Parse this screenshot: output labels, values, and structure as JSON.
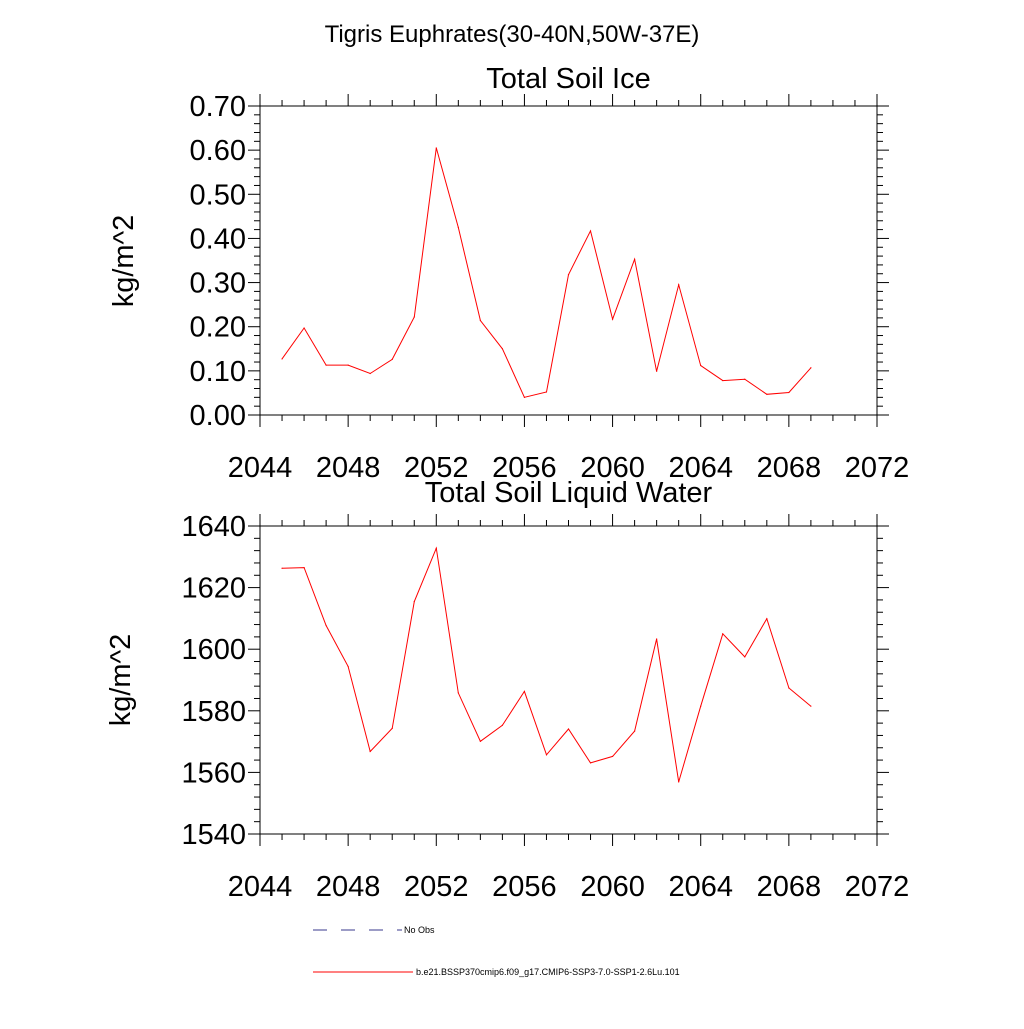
{
  "figure_title": "Tigris Euphrates(30-40N,50W-37E)",
  "legend": {
    "entries": [
      {
        "label": "No Obs",
        "color": "#3a3a8c",
        "dash": true
      },
      {
        "label": "b.e21.BSSP370cmip6.f09_g17.CMIP6-SSP3-7.0-SSP1-2.6Lu.101",
        "color": "#ff0000",
        "dash": false
      }
    ]
  },
  "chart_data": [
    {
      "type": "line",
      "title": "Total Soil Ice",
      "xlabel": "",
      "ylabel": "kg/m^2",
      "xlim": [
        2044,
        2072
      ],
      "ylim": [
        0.0,
        0.7
      ],
      "xticks": [
        "2044",
        "2048",
        "2052",
        "2056",
        "2060",
        "2064",
        "2068",
        "2072"
      ],
      "yticks": [
        "0.00",
        "0.10",
        "0.20",
        "0.30",
        "0.40",
        "0.50",
        "0.60",
        "0.70"
      ],
      "series": [
        {
          "color": "#ff0000",
          "x": [
            2045,
            2046,
            2047,
            2048,
            2049,
            2050,
            2051,
            2052,
            2053,
            2054,
            2055,
            2056,
            2057,
            2058,
            2059,
            2060,
            2061,
            2062,
            2063,
            2064,
            2065,
            2066,
            2067,
            2068,
            2069
          ],
          "values": [
            0.127,
            0.197,
            0.113,
            0.113,
            0.094,
            0.126,
            0.222,
            0.605,
            0.425,
            0.214,
            0.15,
            0.04,
            0.052,
            0.318,
            0.417,
            0.217,
            0.353,
            0.099,
            0.295,
            0.112,
            0.078,
            0.081,
            0.047,
            0.051,
            0.107
          ]
        }
      ]
    },
    {
      "type": "line",
      "title": "Total Soil Liquid Water",
      "xlabel": "",
      "ylabel": "kg/m^2",
      "xlim": [
        2044,
        2072
      ],
      "ylim": [
        1540,
        1640
      ],
      "xticks": [
        "2044",
        "2048",
        "2052",
        "2056",
        "2060",
        "2064",
        "2068",
        "2072"
      ],
      "yticks": [
        "1540",
        "1560",
        "1580",
        "1600",
        "1620",
        "1640"
      ],
      "series": [
        {
          "color": "#ff0000",
          "x": [
            2045,
            2046,
            2047,
            2048,
            2049,
            2050,
            2051,
            2052,
            2053,
            2054,
            2055,
            2056,
            2057,
            2058,
            2059,
            2060,
            2061,
            2062,
            2063,
            2064,
            2065,
            2066,
            2067,
            2068,
            2069
          ],
          "values": [
            1626.3,
            1626.5,
            1607.7,
            1594.4,
            1566.8,
            1574.3,
            1615.5,
            1632.8,
            1585.8,
            1570.1,
            1575.3,
            1586.3,
            1565.7,
            1574.1,
            1563.1,
            1565.2,
            1573.4,
            1603.3,
            1556.9,
            1581.5,
            1605.0,
            1597.5,
            1609.9,
            1587.4,
            1581.5
          ]
        }
      ]
    }
  ]
}
